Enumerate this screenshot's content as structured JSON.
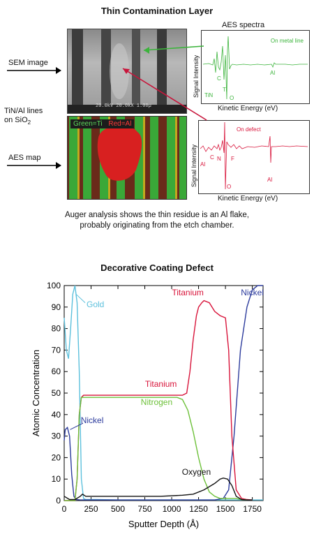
{
  "top": {
    "title": "Thin Contamination Layer",
    "labels": {
      "sem_image": "SEM image",
      "tin_al_lines": "TiN/Al lines",
      "on_sio2": "on SiO",
      "sio2_sub": "2",
      "aes_map": "AES map"
    },
    "sem_overlay": "20.0kV 20.0kX 1.00µ",
    "map_legend": {
      "green": "Green=Ti",
      "red": "Red=Al"
    },
    "aes_spectra_title": "AES spectra",
    "spectrum1": {
      "ylabel": "Signal Intensity",
      "xlabel": "Kinetic Energy (eV)",
      "tag": "On metal line",
      "peaks": [
        "TiN",
        "C",
        "Ti",
        "O",
        "Al"
      ],
      "color": "#3cb43c"
    },
    "spectrum2": {
      "ylabel": "Signal Intensity",
      "xlabel": "Kinetic Energy (eV)",
      "tag": "On defect",
      "peaks": [
        "Al",
        "C",
        "N",
        "F",
        "O",
        "Al"
      ],
      "color": "#d8143a"
    },
    "caption_line1": "Auger analysis shows the thin residue is an Al flake,",
    "caption_line2": "probably originating from the etch chamber."
  },
  "chart_data": {
    "type": "line",
    "title": "Decorative Coating Defect",
    "xlabel": "Sputter Depth (Å)",
    "ylabel": "Atomic Concentration",
    "xlim": [
      0,
      1850
    ],
    "ylim": [
      0,
      100
    ],
    "xticks": [
      0,
      250,
      500,
      750,
      1000,
      1250,
      1500,
      1750
    ],
    "yticks": [
      0,
      10,
      20,
      30,
      40,
      50,
      60,
      70,
      80,
      90,
      100
    ],
    "series": [
      {
        "name": "Gold",
        "color": "#5cc0dc",
        "x": [
          0,
          20,
          40,
          60,
          80,
          100,
          120,
          140,
          160,
          180,
          200,
          300,
          500,
          1000,
          1500,
          1700,
          1850
        ],
        "y": [
          85,
          70,
          66,
          80,
          96,
          100,
          92,
          60,
          10,
          1,
          0.5,
          0.5,
          0.3,
          0.3,
          0.3,
          0.3,
          0.3
        ]
      },
      {
        "name": "Nickel",
        "color": "#2b3a9c",
        "x": [
          0,
          10,
          30,
          50,
          70,
          90,
          110,
          150,
          200,
          500,
          1000,
          1400,
          1480,
          1530,
          1580,
          1640,
          1700,
          1750,
          1800,
          1850
        ],
        "y": [
          28,
          33,
          34,
          30,
          12,
          2,
          0.5,
          0.3,
          0.3,
          0.3,
          0.3,
          0.3,
          1,
          5,
          30,
          70,
          90,
          98,
          100,
          100
        ]
      },
      {
        "name": "Titanium",
        "color": "#d8143a",
        "x": [
          0,
          100,
          120,
          140,
          160,
          180,
          200,
          300,
          500,
          700,
          900,
          1050,
          1100,
          1140,
          1170,
          1200,
          1230,
          1250,
          1280,
          1300,
          1350,
          1400,
          1450,
          1500,
          1530,
          1560,
          1600,
          1650,
          1700,
          1750
        ],
        "y": [
          0,
          0,
          10,
          40,
          48,
          49,
          49,
          49,
          49,
          49,
          49,
          49,
          49,
          50,
          60,
          75,
          86,
          90,
          92,
          93,
          92,
          88,
          86,
          85,
          70,
          30,
          5,
          1,
          0.5,
          0.3
        ]
      },
      {
        "name": "Nitrogen",
        "color": "#6cc038",
        "x": [
          0,
          100,
          120,
          140,
          160,
          180,
          200,
          300,
          500,
          700,
          900,
          1050,
          1100,
          1150,
          1200,
          1250,
          1300,
          1350,
          1400,
          1450,
          1500,
          1550,
          1600,
          1650,
          1700
        ],
        "y": [
          0,
          0,
          10,
          40,
          48,
          48,
          48,
          48,
          48,
          48,
          48,
          48,
          47,
          42,
          32,
          20,
          10,
          4,
          2,
          1,
          1,
          1,
          1,
          0.5,
          0.3
        ]
      },
      {
        "name": "Oxygen",
        "color": "#111111",
        "x": [
          0,
          50,
          100,
          150,
          170,
          200,
          300,
          500,
          700,
          900,
          1100,
          1200,
          1300,
          1400,
          1450,
          1480,
          1520,
          1560,
          1600,
          1650,
          1700,
          1750
        ],
        "y": [
          2,
          0.5,
          0.5,
          2,
          3,
          2,
          2,
          2,
          2,
          2,
          2.5,
          3,
          5,
          8,
          10,
          10.5,
          10,
          7,
          2,
          0.5,
          0.3,
          0.3
        ]
      }
    ],
    "annotations": [
      "Gold",
      "Titanium",
      "Nickel",
      "Titanium",
      "Nitrogen",
      "Nickel",
      "Oxygen"
    ]
  }
}
